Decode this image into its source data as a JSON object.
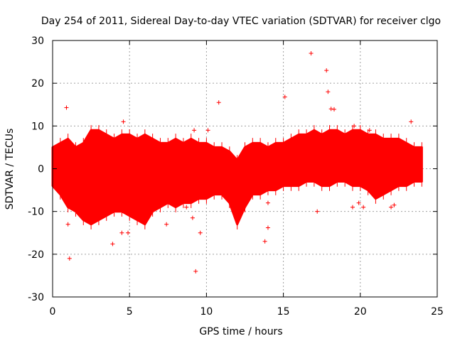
{
  "chart_data": {
    "type": "scatter",
    "title": "Day 254 of 2011, Sidereal Day-to-day VTEC variation (SDTVAR) for receiver clgo",
    "xlabel": "GPS time / hours",
    "ylabel": "SDTVAR / TECUs",
    "xlim": [
      0,
      25
    ],
    "ylim": [
      -30,
      30
    ],
    "xticks": [
      0,
      5,
      10,
      15,
      20,
      25
    ],
    "yticks": [
      -30,
      -20,
      -10,
      0,
      10,
      20,
      30
    ],
    "grid": true,
    "marker": "+",
    "color": "#ff0000",
    "band": {
      "x": [
        0.0,
        0.5,
        1.0,
        1.5,
        2.0,
        2.5,
        3.0,
        3.5,
        4.0,
        4.5,
        5.0,
        5.5,
        6.0,
        6.5,
        7.0,
        7.5,
        8.0,
        8.5,
        9.0,
        9.5,
        10.0,
        10.5,
        11.0,
        11.5,
        12.0,
        12.5,
        13.0,
        13.5,
        14.0,
        14.5,
        15.0,
        15.5,
        16.0,
        16.5,
        17.0,
        17.5,
        18.0,
        18.5,
        19.0,
        19.5,
        20.0,
        20.5,
        21.0,
        21.5,
        22.0,
        22.5,
        23.0,
        23.5,
        24.0
      ],
      "upper": [
        5,
        6,
        7,
        5,
        6,
        9,
        9,
        8,
        7,
        8,
        8,
        7,
        8,
        7,
        6,
        6,
        7,
        6,
        7,
        6,
        6,
        5,
        5,
        4,
        2,
        5,
        6,
        6,
        5,
        6,
        6,
        7,
        8,
        8,
        9,
        8,
        9,
        9,
        8,
        9,
        9,
        8,
        8,
        7,
        7,
        7,
        6,
        5,
        5
      ],
      "lower": [
        -4,
        -6,
        -9,
        -10,
        -12,
        -13,
        -12,
        -11,
        -10,
        -10,
        -11,
        -12,
        -13,
        -10,
        -9,
        -8,
        -9,
        -8,
        -8,
        -7,
        -7,
        -6,
        -6,
        -8,
        -13,
        -9,
        -6,
        -6,
        -5,
        -5,
        -4,
        -4,
        -4,
        -3,
        -3,
        -4,
        -4,
        -3,
        -3,
        -4,
        -4,
        -5,
        -7,
        -6,
        -5,
        -4,
        -4,
        -3,
        -3
      ]
    },
    "outliers": [
      {
        "x": 16.8,
        "y": 27.0
      },
      {
        "x": 17.8,
        "y": 23.0
      },
      {
        "x": 17.9,
        "y": 18.0
      },
      {
        "x": 15.1,
        "y": 16.8
      },
      {
        "x": 0.9,
        "y": 14.3
      },
      {
        "x": 10.8,
        "y": 15.5
      },
      {
        "x": 18.1,
        "y": 14.0
      },
      {
        "x": 18.3,
        "y": 13.9
      },
      {
        "x": 23.3,
        "y": 11.0
      },
      {
        "x": 9.2,
        "y": 9.0
      },
      {
        "x": 10.1,
        "y": 9.0
      },
      {
        "x": 19.6,
        "y": 10.0
      },
      {
        "x": 20.6,
        "y": 9.0
      },
      {
        "x": 4.6,
        "y": 11.0
      },
      {
        "x": 1.0,
        "y": -13.0
      },
      {
        "x": 1.1,
        "y": -21.0
      },
      {
        "x": 3.9,
        "y": -17.6
      },
      {
        "x": 4.5,
        "y": -15.0
      },
      {
        "x": 4.9,
        "y": -15.0
      },
      {
        "x": 7.4,
        "y": -13.0
      },
      {
        "x": 9.3,
        "y": -24.0
      },
      {
        "x": 9.6,
        "y": -15.0
      },
      {
        "x": 9.1,
        "y": -11.5
      },
      {
        "x": 13.8,
        "y": -17.0
      },
      {
        "x": 14.0,
        "y": -13.8
      },
      {
        "x": 17.2,
        "y": -10.0
      },
      {
        "x": 19.5,
        "y": -9.0
      },
      {
        "x": 19.9,
        "y": -8.0
      },
      {
        "x": 20.2,
        "y": -9.0
      },
      {
        "x": 22.0,
        "y": -9.0
      },
      {
        "x": 22.2,
        "y": -8.5
      },
      {
        "x": 14.0,
        "y": -8.0
      },
      {
        "x": 8.7,
        "y": -9.0
      }
    ]
  }
}
